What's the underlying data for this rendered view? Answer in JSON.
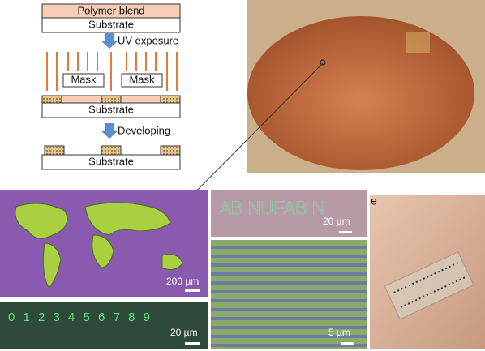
{
  "schematic": {
    "polymer_layer": "Polymer blend",
    "substrate_1": "Substrate",
    "step_1": "UV exposure",
    "masks": [
      "Mask",
      "Mask"
    ],
    "substrate_2": "Substrate",
    "step_2": "Developing",
    "substrate_3": "Substrate"
  },
  "panels": {
    "map_scale": "200 µm",
    "digits": "0 1 2 3 4 5 6 7 8 9",
    "digits_scale": "20 µm",
    "letters": "AB NUFAB N",
    "letters_scale": "20 µm",
    "stripes_scale": "5 µm",
    "panel_e_label": "e"
  }
}
